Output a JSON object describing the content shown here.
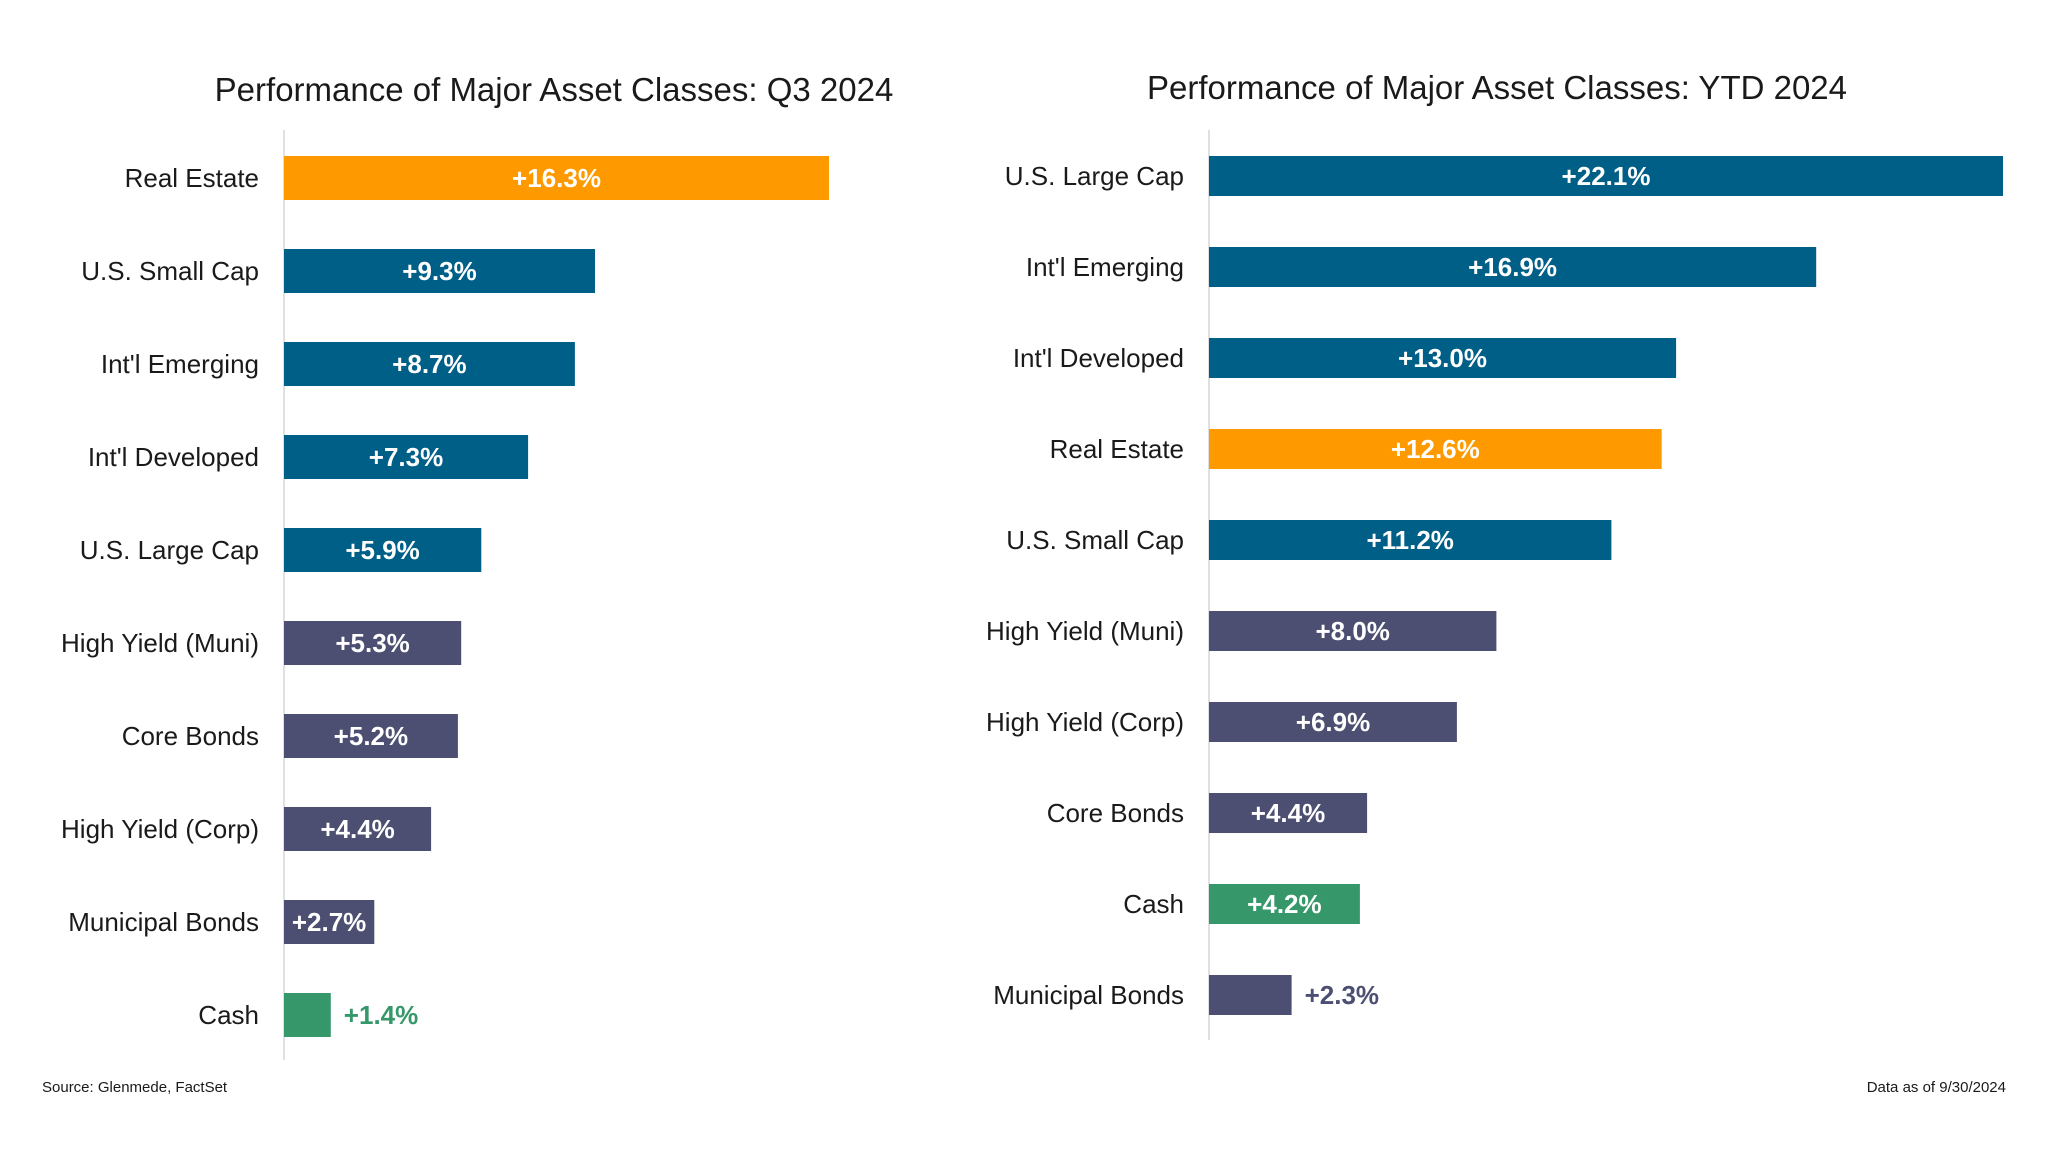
{
  "colors": {
    "real_estate": "#FF9900",
    "equity": "#005F86",
    "fixed_income": "#4C4F71",
    "cash": "#36986A"
  },
  "chart_data": [
    {
      "type": "bar",
      "orientation": "horizontal",
      "title": "Performance of Major Asset Classes: Q3 2024",
      "xlabel": "",
      "ylabel": "",
      "xlim": [
        0,
        16.3
      ],
      "grid": false,
      "categories": [
        "Real Estate",
        "U.S. Small Cap",
        "Int'l Emerging",
        "Int'l Developed",
        "U.S. Large Cap",
        "High Yield (Muni)",
        "Core Bonds",
        "High Yield (Corp)",
        "Municipal Bonds",
        "Cash"
      ],
      "values": [
        16.3,
        9.3,
        8.7,
        7.3,
        5.9,
        5.3,
        5.2,
        4.4,
        2.7,
        1.4
      ],
      "labels": [
        "+16.3%",
        "+9.3%",
        "+8.7%",
        "+7.3%",
        "+5.9%",
        "+5.3%",
        "+5.2%",
        "+4.4%",
        "+2.7%",
        "+1.4%"
      ],
      "bar_colors": [
        "#FF9900",
        "#005F86",
        "#005F86",
        "#005F86",
        "#005F86",
        "#4C4F71",
        "#4C4F71",
        "#4C4F71",
        "#4C4F71",
        "#36986A"
      ]
    },
    {
      "type": "bar",
      "orientation": "horizontal",
      "title": "Performance of Major Asset Classes: YTD 2024",
      "xlabel": "",
      "ylabel": "",
      "xlim": [
        0,
        22.1
      ],
      "grid": false,
      "categories": [
        "U.S. Large Cap",
        "Int'l Emerging",
        "Int'l Developed",
        "Real Estate",
        "U.S. Small Cap",
        "High Yield (Muni)",
        "High Yield (Corp)",
        "Core Bonds",
        "Cash",
        "Municipal Bonds"
      ],
      "values": [
        22.1,
        16.9,
        13.0,
        12.6,
        11.2,
        8.0,
        6.9,
        4.4,
        4.2,
        2.3
      ],
      "labels": [
        "+22.1%",
        "+16.9%",
        "+13.0%",
        "+12.6%",
        "+11.2%",
        "+8.0%",
        "+6.9%",
        "+4.4%",
        "+4.2%",
        "+2.3%"
      ],
      "bar_colors": [
        "#005F86",
        "#005F86",
        "#005F86",
        "#FF9900",
        "#005F86",
        "#4C4F71",
        "#4C4F71",
        "#4C4F71",
        "#36986A",
        "#4C4F71"
      ]
    }
  ],
  "footer": {
    "source": "Source: Glenmede, FactSet",
    "as_of": "Data as of 9/30/2024"
  }
}
